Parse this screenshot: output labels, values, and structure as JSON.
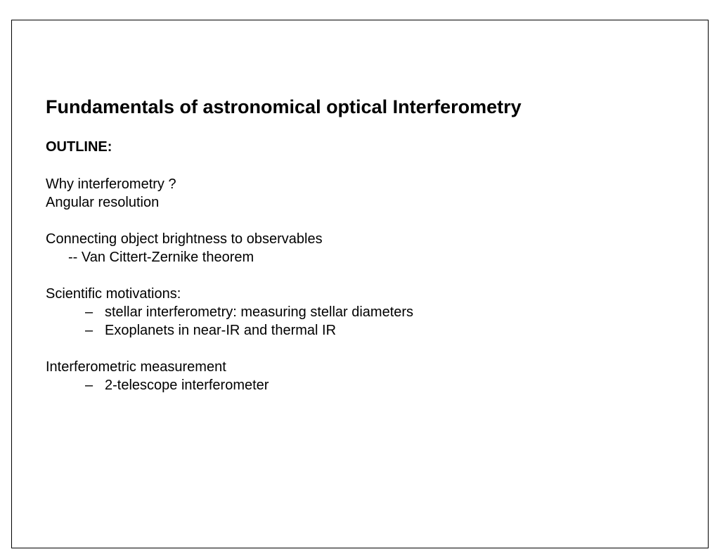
{
  "slide": {
    "title": "Fundamentals of astronomical optical Interferometry",
    "outline_label": "OUTLINE:",
    "section1": {
      "line1": "Why interferometry ?",
      "line2": "Angular resolution"
    },
    "section2": {
      "line1": "Connecting object brightness to observables",
      "sub1": "-- Van Cittert-Zernike theorem"
    },
    "section3": {
      "line1": "Scientific motivations:",
      "bullets": [
        "stellar interferometry: measuring stellar diameters",
        "Exoplanets in near-IR and thermal IR"
      ]
    },
    "section4": {
      "line1": "Interferometric measurement",
      "bullets": [
        "2-telescope interferometer"
      ]
    },
    "bullet_char": "–",
    "colors": {
      "text": "#000000",
      "background": "#ffffff",
      "border": "#000000"
    },
    "typography": {
      "title_fontsize": 27,
      "body_fontsize": 20,
      "title_weight": "bold",
      "outline_weight": "bold"
    }
  }
}
